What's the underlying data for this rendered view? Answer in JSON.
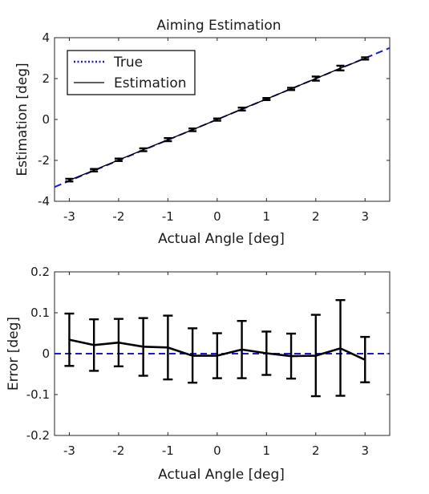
{
  "chart_data": [
    {
      "type": "line",
      "title": "Aiming Estimation",
      "xlabel": "Actual Angle [deg]",
      "ylabel": "Estimation [deg]",
      "xlim": [
        -3.3,
        3.5
      ],
      "ylim": [
        -4,
        4
      ],
      "xticks": [
        -3,
        -2,
        -1,
        0,
        1,
        2,
        3
      ],
      "yticks": [
        -4,
        -2,
        0,
        2,
        4
      ],
      "grid": false,
      "legend": {
        "position": "top-left",
        "entries": [
          "True",
          "Estimation"
        ]
      },
      "x": [
        -3,
        -2.5,
        -2,
        -1.5,
        -1,
        -0.5,
        0,
        0.5,
        1,
        1.5,
        2,
        2.5,
        3
      ],
      "series": [
        {
          "name": "True",
          "style": "dashed",
          "color": "#1a1ad6",
          "x": [
            -3.3,
            3.5
          ],
          "values": [
            -3.3,
            3.5
          ]
        },
        {
          "name": "Estimation",
          "style": "solid",
          "color": "#000000",
          "values": [
            -2.97,
            -2.48,
            -1.98,
            -1.48,
            -0.99,
            -0.5,
            0.0,
            0.51,
            1.0,
            1.5,
            2.0,
            2.51,
            2.98
          ],
          "err_low": [
            -3.03,
            -2.54,
            -2.03,
            -1.55,
            -1.06,
            -0.57,
            -0.06,
            0.44,
            0.95,
            1.44,
            1.9,
            2.4,
            2.93
          ],
          "err_high": [
            -2.9,
            -2.42,
            -1.91,
            -1.41,
            -0.91,
            -0.44,
            0.05,
            0.58,
            1.05,
            1.55,
            2.1,
            2.63,
            3.04
          ]
        }
      ]
    },
    {
      "type": "line",
      "title": "",
      "xlabel": "Actual Angle [deg]",
      "ylabel": "Error [deg]",
      "xlim": [
        -3.3,
        3.5
      ],
      "ylim": [
        -0.2,
        0.2
      ],
      "xticks": [
        -3,
        -2,
        -1,
        0,
        1,
        2,
        3
      ],
      "yticks": [
        -0.2,
        -0.1,
        0,
        0.1,
        0.2
      ],
      "grid": false,
      "x": [
        -3,
        -2.5,
        -2,
        -1.5,
        -1,
        -0.5,
        0,
        0.5,
        1,
        1.5,
        2,
        2.5,
        3
      ],
      "reference_line": {
        "y": 0,
        "style": "dashed",
        "color": "#1a1ad6"
      },
      "series": [
        {
          "style": "solid",
          "color": "#000000",
          "values": [
            0.034,
            0.021,
            0.027,
            0.017,
            0.015,
            -0.005,
            -0.005,
            0.01,
            0.001,
            -0.006,
            -0.005,
            0.013,
            -0.015
          ],
          "err_low": [
            -0.03,
            -0.042,
            -0.031,
            -0.054,
            -0.063,
            -0.071,
            -0.06,
            -0.06,
            -0.052,
            -0.061,
            -0.104,
            -0.103,
            -0.07
          ],
          "err_high": [
            0.098,
            0.084,
            0.085,
            0.087,
            0.093,
            0.062,
            0.05,
            0.08,
            0.054,
            0.049,
            0.095,
            0.131,
            0.041
          ]
        }
      ]
    }
  ]
}
